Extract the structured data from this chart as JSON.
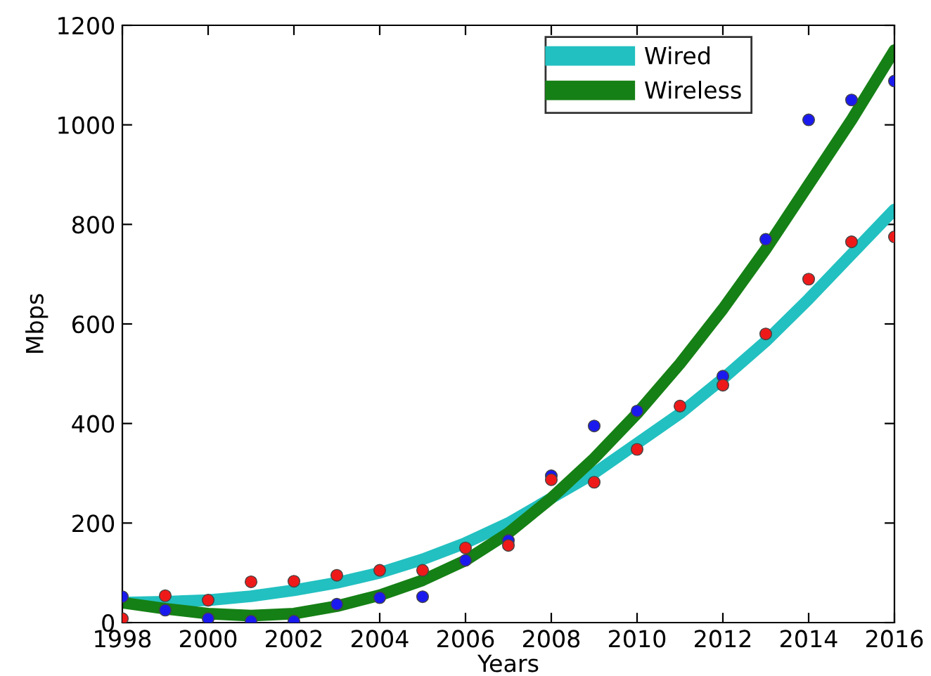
{
  "chart_data": {
    "type": "scatter",
    "xlabel": "Years",
    "ylabel": "Mbps",
    "xlim": [
      1998,
      2016
    ],
    "ylim": [
      0,
      1200
    ],
    "xticks": [
      1998,
      2000,
      2002,
      2004,
      2006,
      2008,
      2010,
      2012,
      2014,
      2016
    ],
    "yticks": [
      0,
      200,
      400,
      600,
      800,
      1000,
      1200
    ],
    "grid": false,
    "legend": "top right",
    "x": [
      1998,
      1999,
      2000,
      2001,
      2002,
      2003,
      2004,
      2005,
      2006,
      2007,
      2008,
      2009,
      2010,
      2011,
      2012,
      2013,
      2014,
      2015,
      2016
    ],
    "series": [
      {
        "color": "#1a1aee",
        "marker": "circle",
        "values": [
          52,
          25,
          8,
          3,
          3,
          37,
          50,
          52,
          125,
          165,
          295,
          395,
          425,
          null,
          495,
          770,
          1010,
          1050,
          1088
        ]
      },
      {
        "color": "#ee1a1a",
        "marker": "circle",
        "values": [
          8,
          54,
          45,
          82,
          83,
          95,
          105,
          105,
          150,
          155,
          287,
          282,
          348,
          435,
          477,
          580,
          690,
          765,
          775
        ]
      },
      {
        "type": "line",
        "name": "Wired",
        "color": "#22c0c0",
        "marker": "none",
        "values": [
          40,
          42,
          45,
          53,
          65,
          80,
          100,
          127,
          160,
          200,
          250,
          300,
          360,
          420,
          490,
          565,
          650,
          740,
          830
        ]
      },
      {
        "type": "line",
        "name": "Wireless",
        "color": "#158015",
        "marker": "none",
        "values": [
          40,
          28,
          18,
          14,
          18,
          33,
          55,
          85,
          125,
          180,
          250,
          330,
          420,
          520,
          630,
          750,
          880,
          1010,
          1150
        ]
      }
    ]
  }
}
